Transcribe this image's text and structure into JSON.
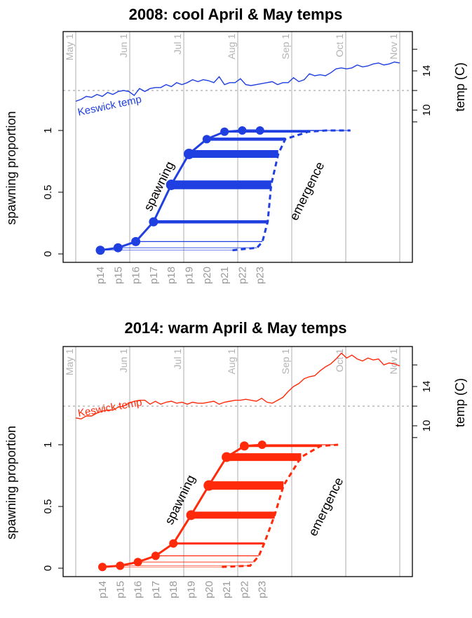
{
  "chart_data": [
    {
      "type": "line",
      "title": "2008: cool April & May temps",
      "ylabel": "spawning proportion",
      "ylabel_right": "temp (C)",
      "color": "#1f3fe0",
      "months": [
        "May 1",
        "Jun 1",
        "Jul 1",
        "Aug 1",
        "Sep 1",
        "Oct 1",
        "Nov 1"
      ],
      "yticks": [
        0,
        0.5,
        1
      ],
      "yticklabels": [
        "0",
        "0.5",
        "1"
      ],
      "temp_ticks": [
        10,
        14
      ],
      "temp_ticklabels": [
        "10",
        "14"
      ],
      "temp_ref": 12,
      "temp_label": "Keswick temp",
      "temp_day_range": [
        0,
        191
      ],
      "temp_values": [
        10.9,
        11.1,
        11.4,
        11.3,
        11.6,
        11.4,
        11.8,
        11.6,
        11.9,
        12.0,
        11.9,
        11.5,
        12.2,
        11.9,
        12.2,
        12.3,
        12.3,
        12.6,
        12.4,
        12.8,
        12.6,
        12.8,
        13.1,
        12.9,
        13.1,
        13.0,
        12.8,
        13.4,
        12.6,
        12.8,
        12.8,
        13.2,
        12.6,
        12.5,
        12.6,
        12.7,
        12.8,
        12.9,
        12.6,
        12.8,
        12.8,
        13.3,
        12.9,
        13.1,
        13.7,
        13.5,
        13.6,
        13.5,
        13.8,
        14.2,
        14.3,
        14.2,
        14.3,
        14.6,
        14.4,
        14.5,
        14.7,
        14.8,
        14.6,
        14.7,
        14.9,
        14.8
      ],
      "pentads": [
        "p14",
        "p15",
        "p16",
        "p17",
        "p18",
        "p19",
        "p20",
        "p21",
        "p22",
        "p23"
      ],
      "spawning_label": "spawning",
      "emergence_label": "emergence",
      "spawning": [
        0.03,
        0.05,
        0.1,
        0.26,
        0.56,
        0.81,
        0.93,
        0.99,
        1.0,
        1.0
      ],
      "emergence": [
        0.03,
        0.05,
        0.1,
        0.26,
        0.56,
        0.81,
        0.93,
        0.99,
        1.0,
        1.0
      ],
      "emergence_x": [
        89,
        103,
        106,
        109,
        111,
        115,
        119,
        132,
        142,
        156
      ],
      "line_widths": [
        0.6,
        0.8,
        1.2,
        4.5,
        12.5,
        11,
        4.5,
        2.5,
        1.5,
        1.0
      ],
      "dot_sizes": [
        6.5,
        6.5,
        6.5,
        6.5,
        7.5,
        7.5,
        6,
        6,
        6,
        6
      ]
    },
    {
      "type": "line",
      "title": "2014: warm April & May temps",
      "ylabel": "spawning proportion",
      "ylabel_right": "temp (C)",
      "color": "#ff2a0a",
      "months": [
        "May 1",
        "Jun 1",
        "Jul 1",
        "Aug 1",
        "Sep 1",
        "Oct 1",
        "Nov 1"
      ],
      "yticks": [
        0,
        0.5,
        1
      ],
      "yticklabels": [
        "0",
        "0.5",
        "1"
      ],
      "temp_ticks": [
        10,
        14
      ],
      "temp_ticklabels": [
        "10",
        "14"
      ],
      "temp_ref": 12,
      "temp_label": "Keswick temp",
      "temp_day_range": [
        0,
        191
      ],
      "temp_values": [
        10.8,
        10.7,
        11.0,
        11.0,
        11.3,
        11.5,
        11.6,
        11.6,
        11.9,
        12.0,
        12.3,
        12.5,
        12.6,
        12.6,
        12.2,
        12.5,
        12.2,
        12.4,
        12.5,
        12.3,
        12.4,
        12.2,
        12.4,
        12.3,
        12.3,
        12.4,
        12.5,
        12.2,
        12.4,
        12.5,
        12.6,
        12.6,
        12.7,
        12.6,
        12.5,
        12.8,
        12.4,
        12.3,
        12.6,
        12.9,
        13.5,
        14.0,
        14.3,
        14.8,
        15.0,
        15.1,
        15.6,
        16.0,
        16.3,
        16.8,
        17.4,
        16.9,
        17.2,
        16.8,
        16.6,
        16.9,
        16.7,
        16.8,
        16.2,
        16.4,
        16.3,
        16.1
      ],
      "pentads": [
        "p14",
        "p15",
        "p16",
        "p17",
        "p18",
        "p19",
        "p20",
        "p21",
        "p22",
        "p23"
      ],
      "spawning_label": "spawning",
      "emergence_label": "emergence",
      "spawning": [
        0.01,
        0.02,
        0.05,
        0.1,
        0.2,
        0.43,
        0.67,
        0.9,
        0.99,
        1.0
      ],
      "emergence": [
        0.01,
        0.02,
        0.05,
        0.1,
        0.2,
        0.43,
        0.67,
        0.9,
        0.99,
        1.0
      ],
      "emergence_x": [
        83,
        99,
        101,
        104,
        107,
        113,
        118,
        128,
        139,
        149
      ],
      "line_widths": [
        0.6,
        0.6,
        0.8,
        1.2,
        3,
        10,
        12,
        11,
        3,
        1.2
      ],
      "dot_sizes": [
        6,
        6,
        6,
        6,
        6,
        7,
        7.5,
        7,
        6.5,
        6
      ]
    }
  ]
}
